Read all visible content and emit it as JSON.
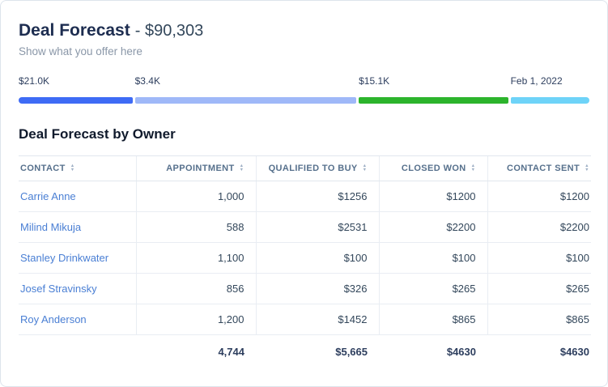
{
  "header": {
    "title": "Deal Forecast",
    "amount": "- $90,303",
    "subtitle": "Show what you offer here"
  },
  "progress": {
    "segments": [
      {
        "label": "$21.0K",
        "color": "#3e6bf5",
        "width_pct": 20.2
      },
      {
        "label": "$3.4K",
        "color": "#9fb8f8",
        "width_pct": 39.3
      },
      {
        "label": "$15.1K",
        "color": "#2cb42c",
        "width_pct": 26.5
      },
      {
        "label": "Feb 1, 2022",
        "color": "#6ed3f8",
        "width_pct": 14.0
      }
    ]
  },
  "table": {
    "title": "Deal Forecast by Owner",
    "columns": [
      "Contact",
      "Appointment",
      "Qualified to Buy",
      "Closed Won",
      "Contact Sent"
    ],
    "rows": [
      {
        "contact": "Carrie Anne",
        "values": [
          "1,000",
          "$1256",
          "$1200",
          "$1200"
        ]
      },
      {
        "contact": "Milind Mikuja",
        "values": [
          "588",
          "$2531",
          "$2200",
          "$2200"
        ]
      },
      {
        "contact": "Stanley Drinkwater",
        "values": [
          "1,100",
          "$100",
          "$100",
          "$100"
        ]
      },
      {
        "contact": "Josef Stravinsky",
        "values": [
          "856",
          "$326",
          "$265",
          "$265"
        ]
      },
      {
        "contact": "Roy Anderson",
        "values": [
          "1,200",
          "$1452",
          "$865",
          "$865"
        ]
      }
    ],
    "totals": [
      "4,744",
      "$5,665",
      "$4630",
      "$4630"
    ]
  }
}
